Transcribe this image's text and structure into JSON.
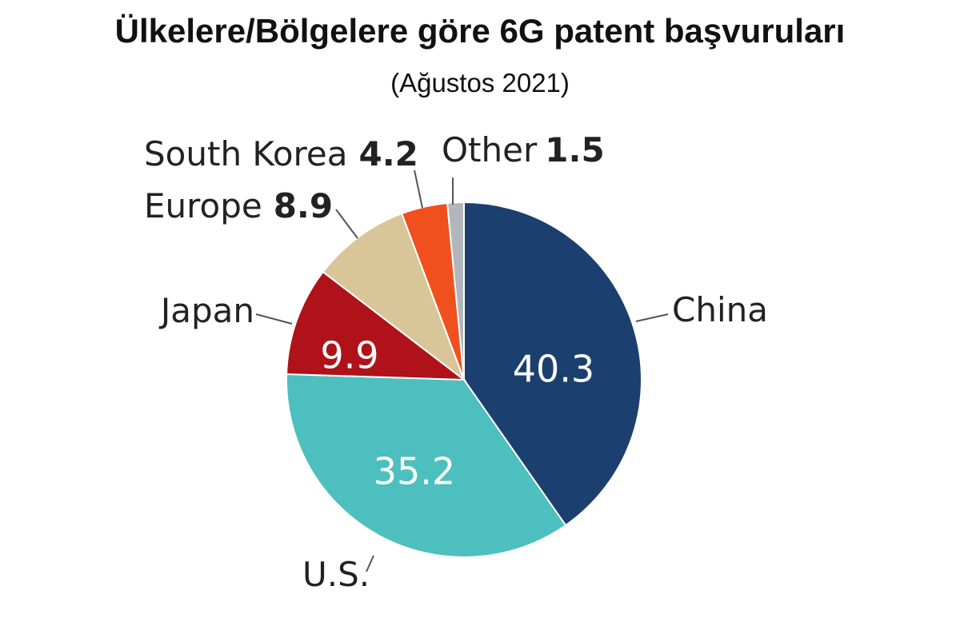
{
  "chart_data": {
    "type": "pie",
    "title": "Ülkelere/Bölgelere göre 6G patent başvuruları",
    "subtitle": "(Ağustos 2021)",
    "slices": [
      {
        "label": "China",
        "value": 40.3,
        "value_text": "40.3",
        "color": "#1b3f6e",
        "label_mode": "inside"
      },
      {
        "label": "U.S.",
        "value": 35.2,
        "value_text": "35.2",
        "color": "#4dbfbf",
        "label_mode": "inside"
      },
      {
        "label": "Japan",
        "value": 9.9,
        "value_text": "9.9",
        "color": "#b01219",
        "label_mode": "inside"
      },
      {
        "label": "Europe",
        "value": 8.9,
        "value_text": "8.9",
        "color": "#d8c699",
        "label_mode": "outside"
      },
      {
        "label": "South Korea",
        "value": 4.2,
        "value_text": "4.2",
        "color": "#f0501e",
        "label_mode": "outside"
      },
      {
        "label": "Other",
        "value": 1.5,
        "value_text": "1.5",
        "color": "#b2b6bc",
        "label_mode": "outside"
      }
    ],
    "start_direction": "12 o'clock",
    "direction": "clockwise"
  }
}
